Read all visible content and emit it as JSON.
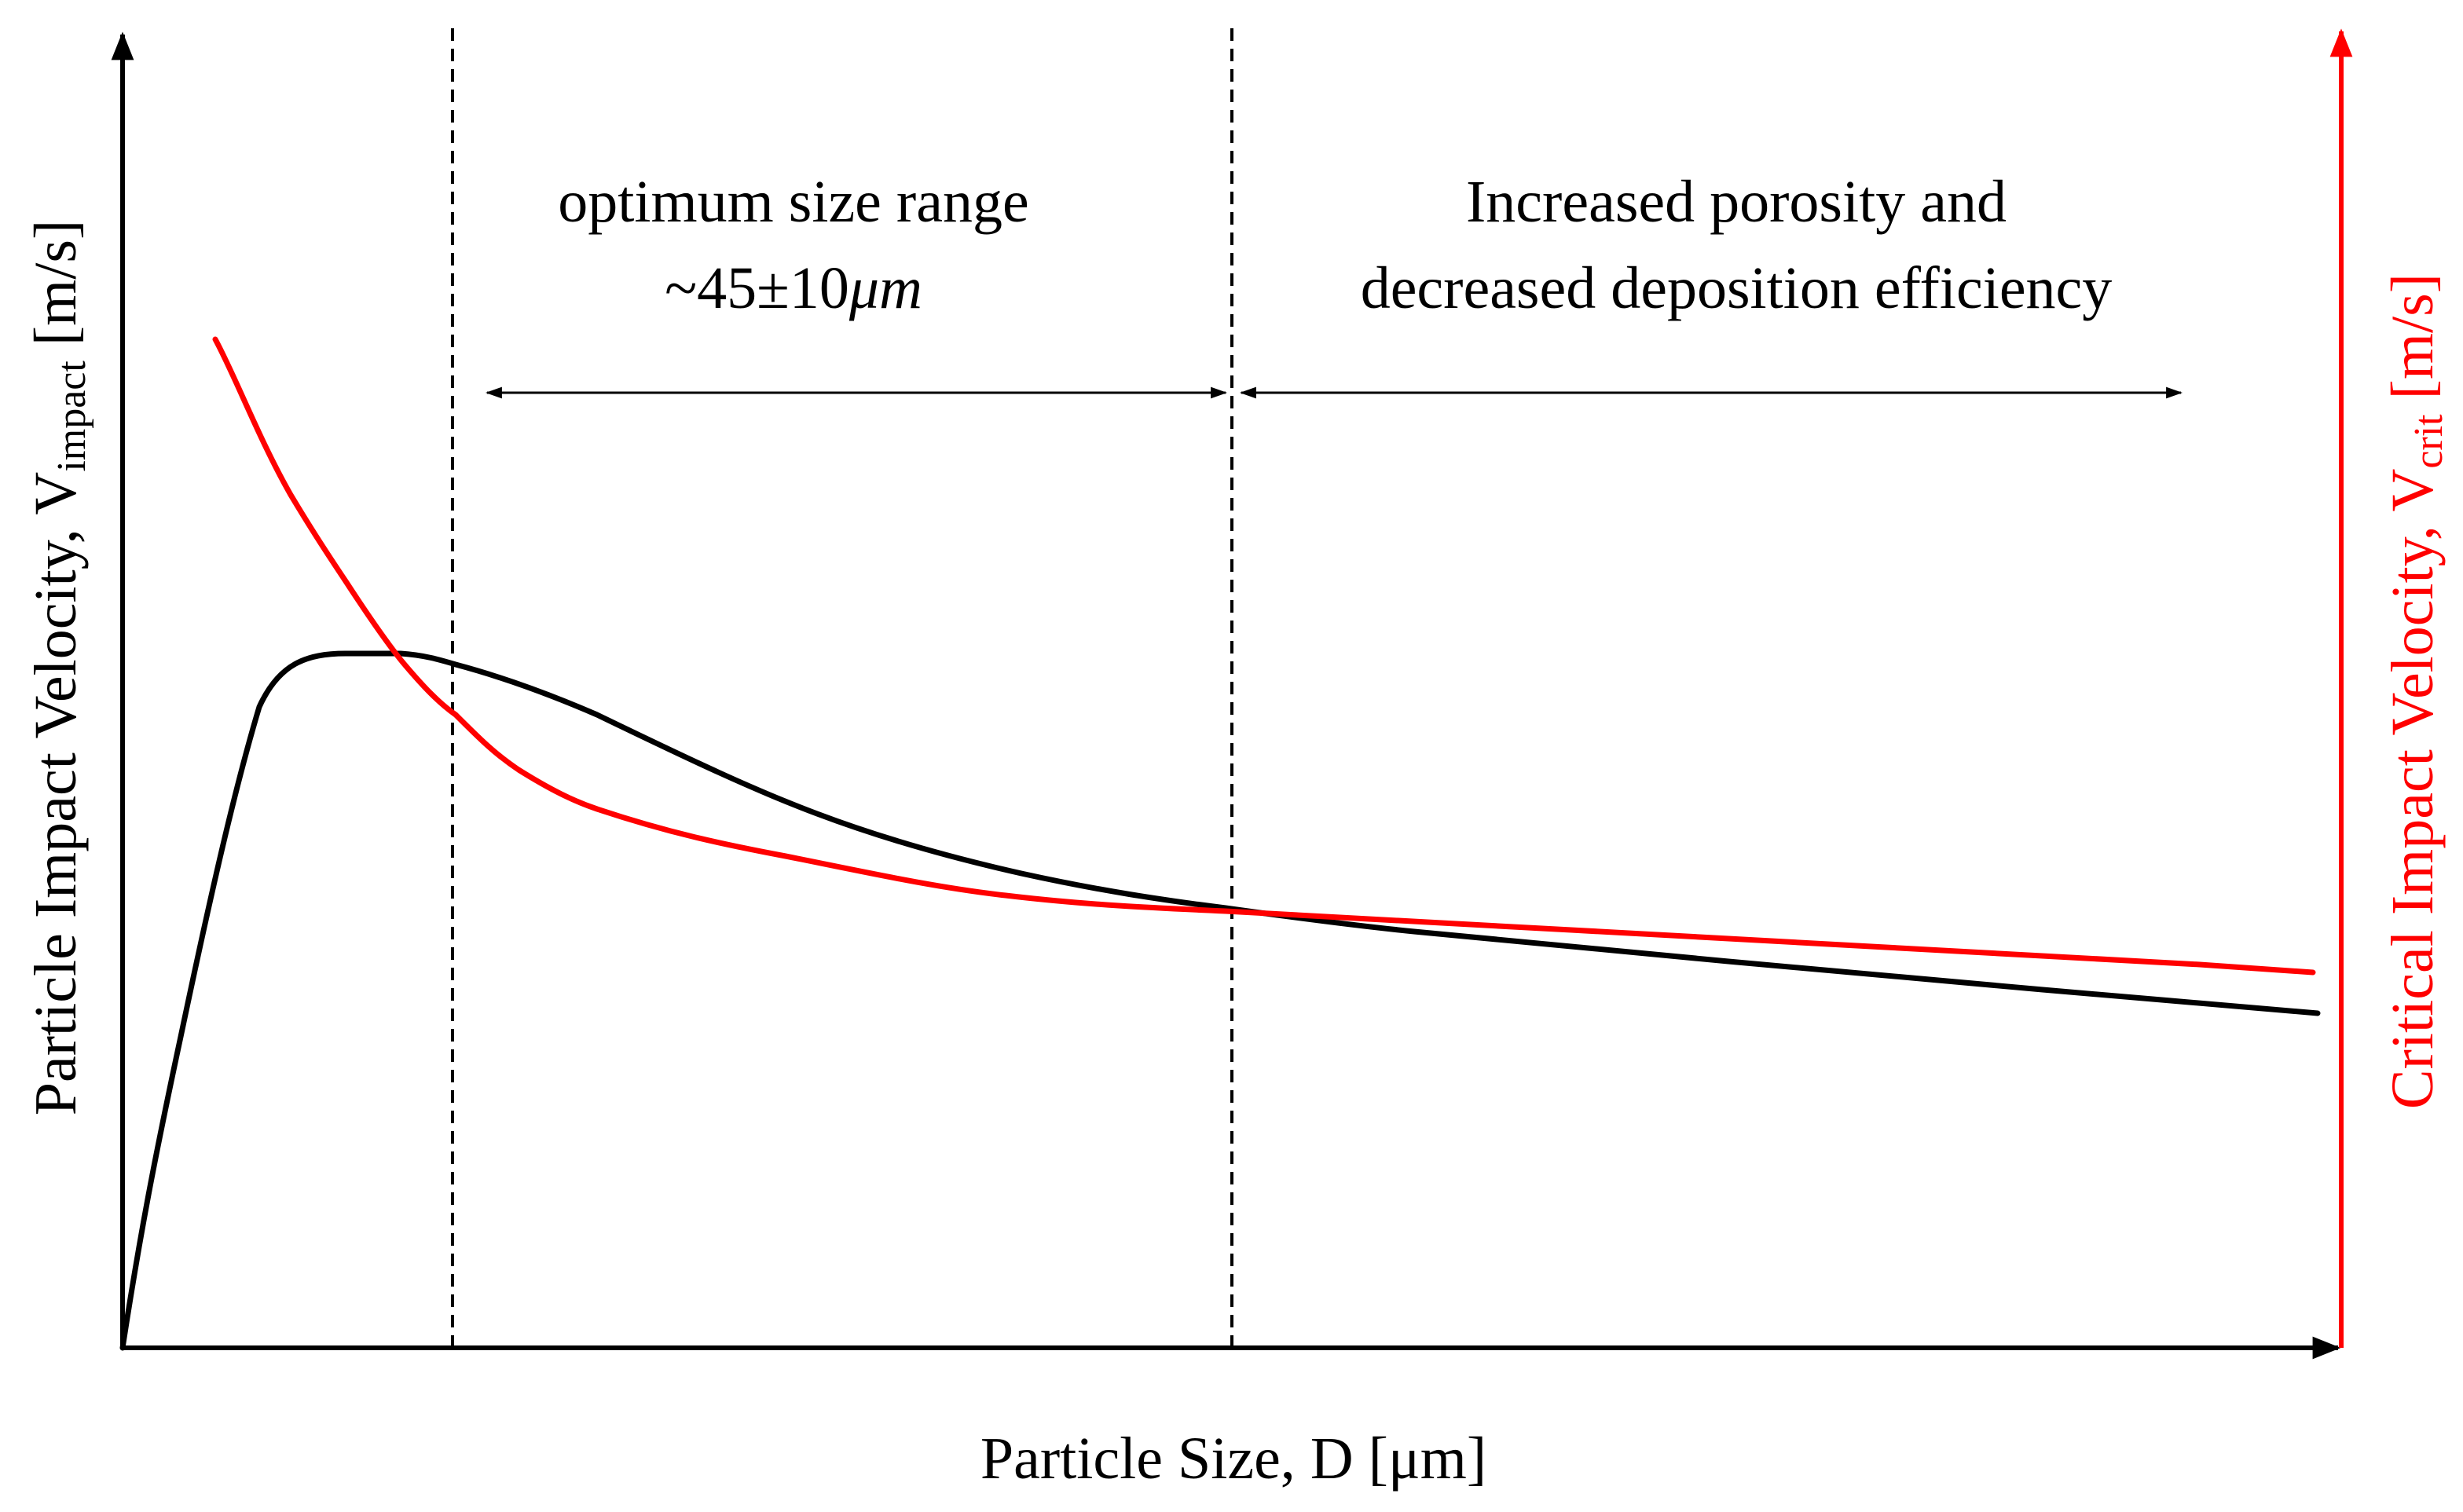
{
  "x_axis_label": "Particle Size, D [μm]",
  "y_axis_label": {
    "text": "Particle Impact Velocity, V",
    "subscript": "impact",
    "unit": " [m/s]"
  },
  "y2_axis_label": {
    "text": "Critical Impact Velocity, V",
    "subscript": "crit",
    "unit": " [m/s]"
  },
  "annotations": [
    {
      "lines": [
        "optimum size range"
      ],
      "value": {
        "text": "~45±10",
        "italic": "μm"
      }
    },
    {
      "lines": [
        "Increased porosity and",
        "decreased deposition efficiency"
      ]
    }
  ]
}
